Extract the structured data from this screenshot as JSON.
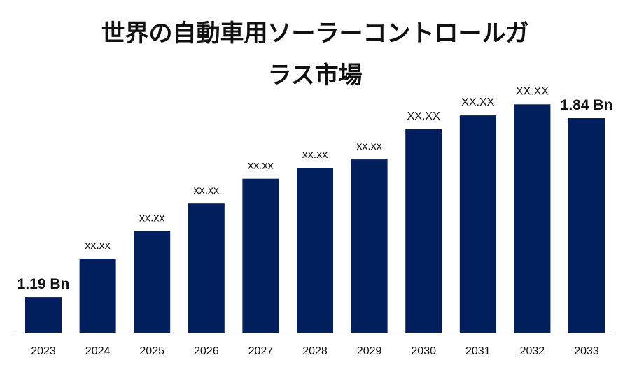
{
  "chart_data": {
    "type": "bar",
    "title_line1": "世界の自動車用ソーラーコントロールガ",
    "title_line2": "ラス市場",
    "categories": [
      "2023",
      "2024",
      "2025",
      "2026",
      "2027",
      "2028",
      "2029",
      "2030",
      "2031",
      "2032",
      "2033"
    ],
    "values": [
      1.19,
      1.33,
      1.43,
      1.53,
      1.62,
      1.66,
      1.69,
      1.8,
      1.85,
      1.89,
      1.84
    ],
    "labels": [
      "1.19 Bn",
      "xx.xx",
      "xx.xx",
      "xx.xx",
      "xx.xx",
      "xx.xx",
      "xx.xx",
      "XX.XX",
      "XX.XX",
      "XX.XX",
      "1.84 Bn"
    ],
    "label_emphasis": [
      true,
      false,
      false,
      false,
      false,
      false,
      false,
      false,
      false,
      false,
      true
    ],
    "bar_color": "#001f5c",
    "grid": false,
    "legend": "none"
  }
}
